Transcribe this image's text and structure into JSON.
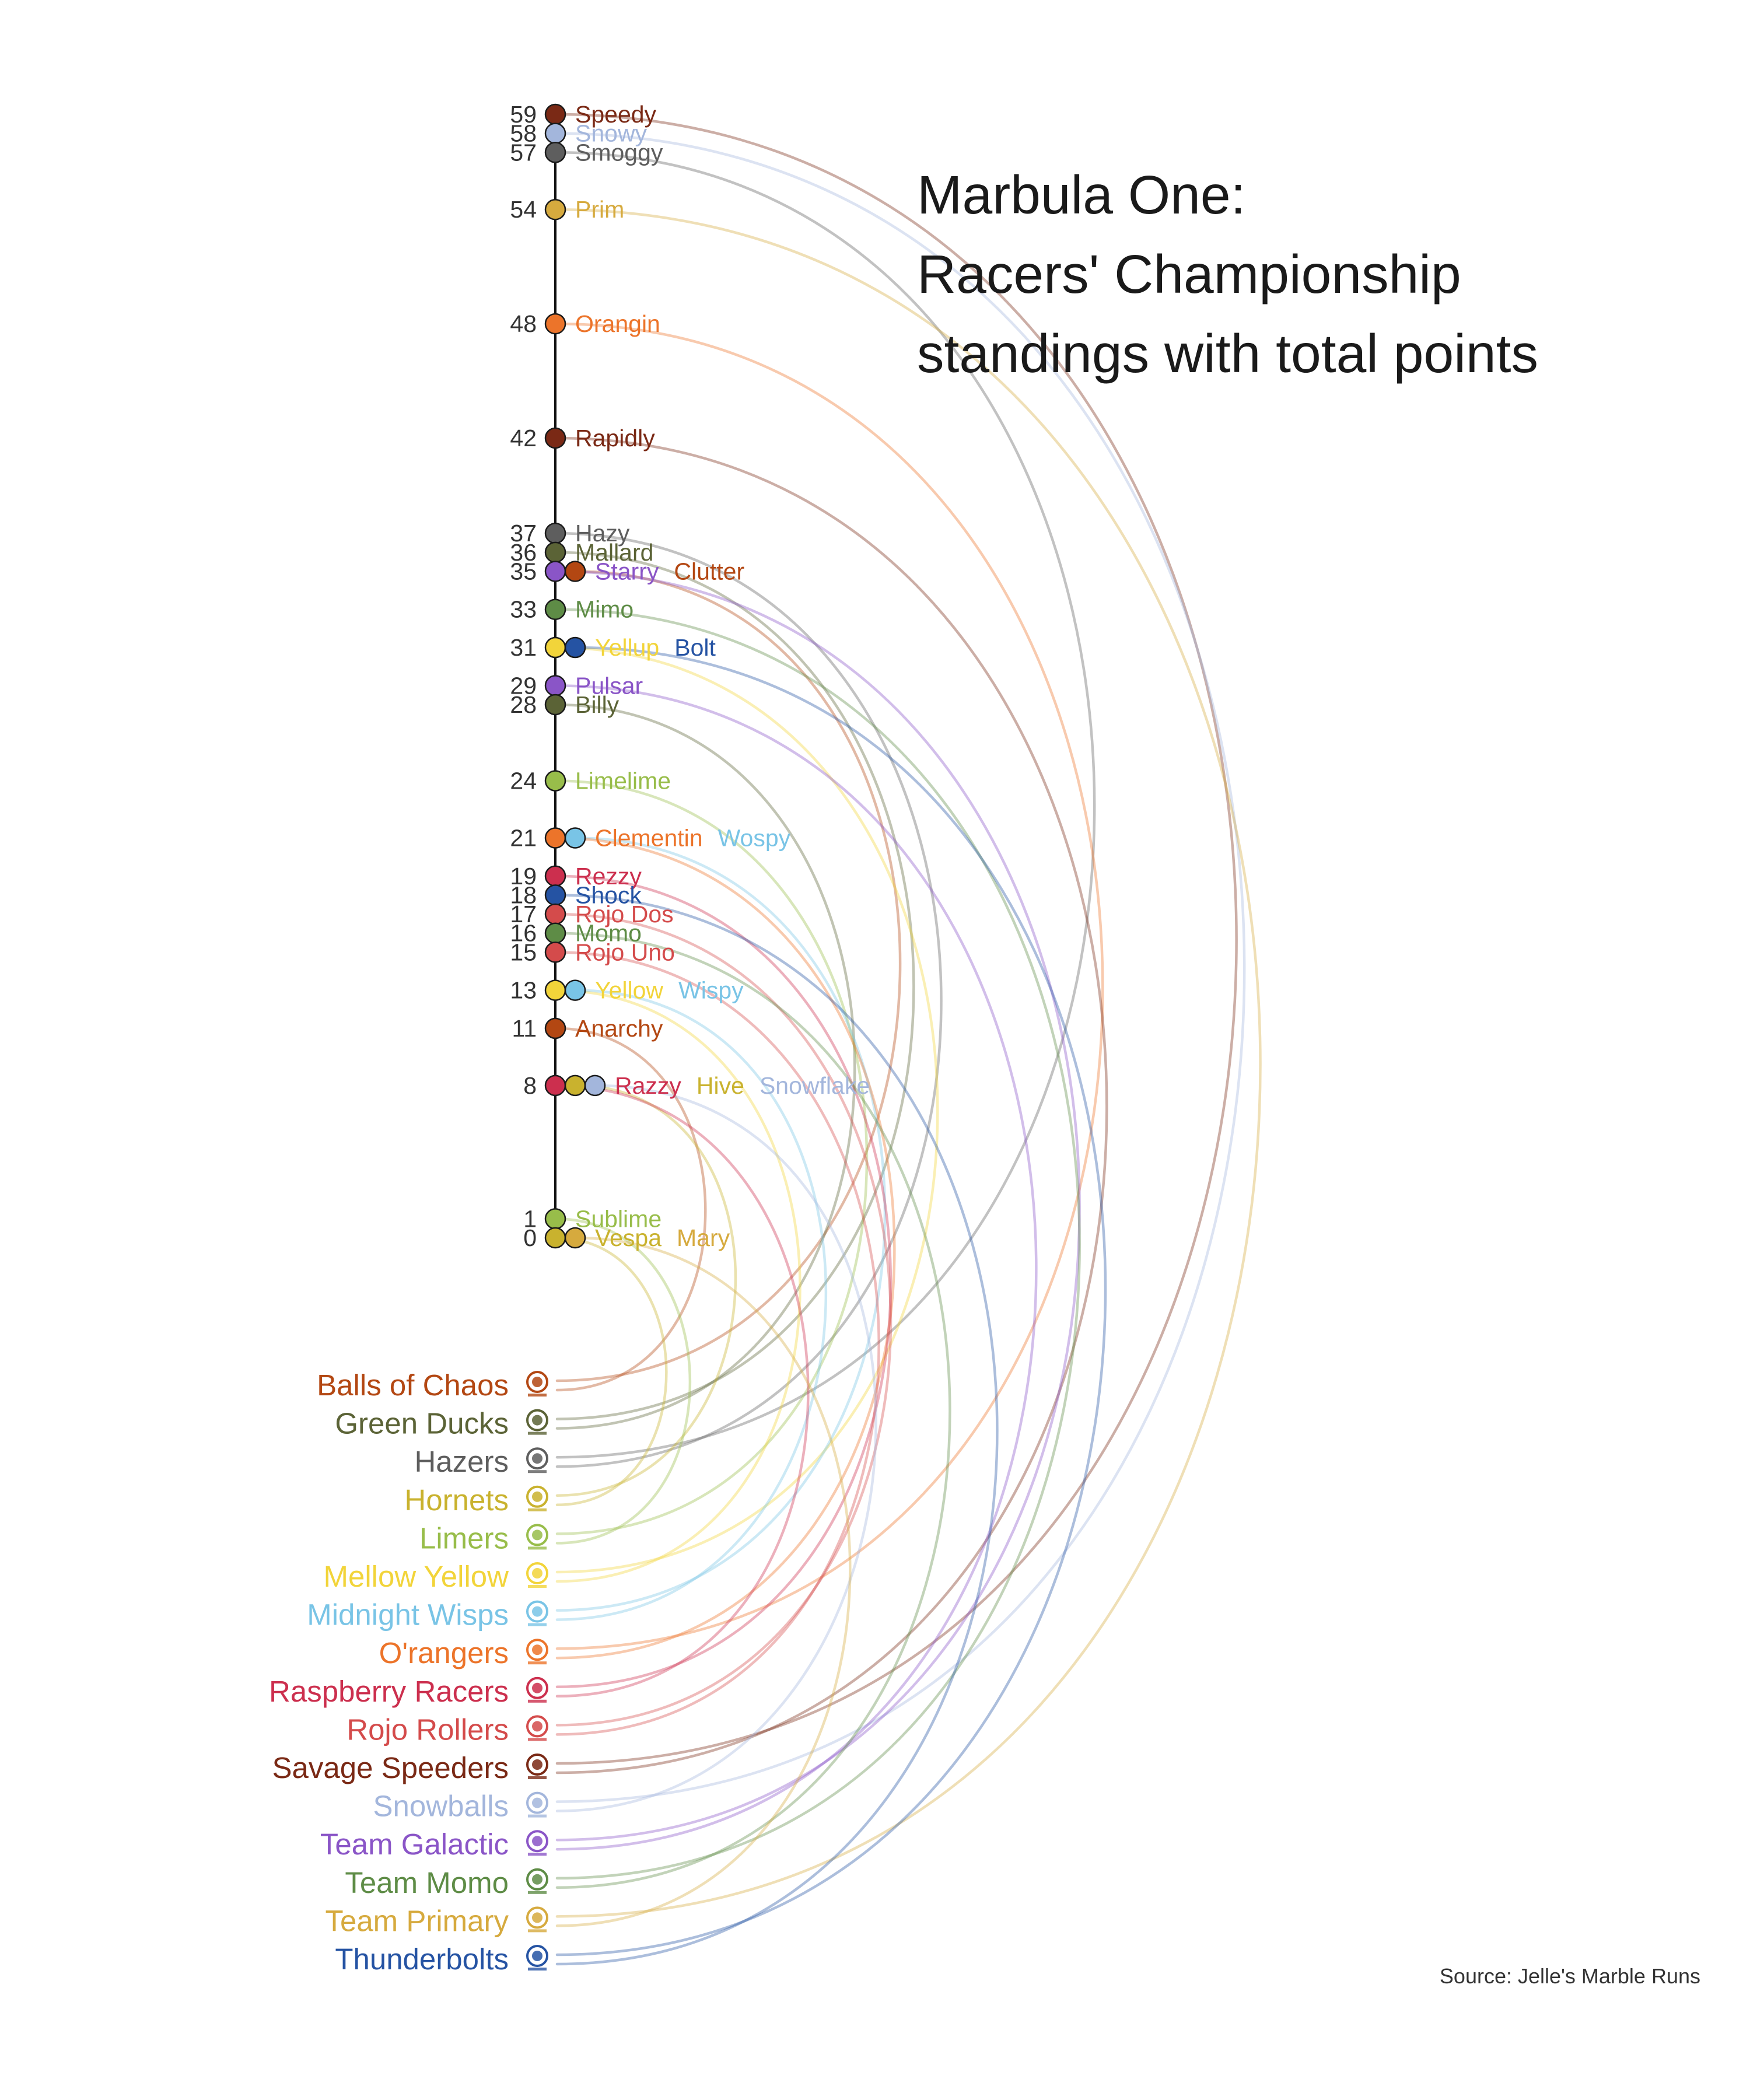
{
  "chart_data": {
    "type": "scatter",
    "title": "Marbula One:\nRacers' Championship\nstandings with total points",
    "source": "Source: Jelle's Marble Runs",
    "ylim": [
      0,
      59
    ],
    "teams": [
      {
        "name": "Balls of Chaos",
        "color": "#b34712",
        "racers": [
          "Clutter",
          "Anarchy"
        ]
      },
      {
        "name": "Green Ducks",
        "color": "#5b6336",
        "racers": [
          "Mallard",
          "Billy"
        ]
      },
      {
        "name": "Hazers",
        "color": "#5e5e5e",
        "racers": [
          "Smoggy",
          "Hazy"
        ]
      },
      {
        "name": "Hornets",
        "color": "#c9b22e",
        "racers": [
          "Hive",
          "Vespa"
        ]
      },
      {
        "name": "Limers",
        "color": "#98bd4a",
        "racers": [
          "Limelime",
          "Sublime"
        ]
      },
      {
        "name": "Mellow Yellow",
        "color": "#f2d43a",
        "racers": [
          "Yellup",
          "Yellow"
        ]
      },
      {
        "name": "Midnight Wisps",
        "color": "#79c4e6",
        "racers": [
          "Wospy",
          "Wispy"
        ]
      },
      {
        "name": "O'rangers",
        "color": "#ec742a",
        "racers": [
          "Orangin",
          "Clementin"
        ]
      },
      {
        "name": "Raspberry Racers",
        "color": "#cc2f4e",
        "racers": [
          "Rezzy",
          "Razzy"
        ]
      },
      {
        "name": "Rojo Rollers",
        "color": "#d44b4b",
        "racers": [
          "Rojo Dos",
          "Rojo Uno"
        ]
      },
      {
        "name": "Savage Speeders",
        "color": "#7a2915",
        "racers": [
          "Speedy",
          "Rapidly"
        ]
      },
      {
        "name": "Snowballs",
        "color": "#a3b6dc",
        "racers": [
          "Snowy",
          "Snowflake"
        ]
      },
      {
        "name": "Team Galactic",
        "color": "#8a55c7",
        "racers": [
          "Starry",
          "Pulsar"
        ]
      },
      {
        "name": "Team Momo",
        "color": "#5e8c46",
        "racers": [
          "Mimo",
          "Momo"
        ]
      },
      {
        "name": "Team Primary",
        "color": "#d6aa3e",
        "racers": [
          "Prim",
          "Mary"
        ]
      },
      {
        "name": "Thunderbolts",
        "color": "#2553a3",
        "racers": [
          "Bolt",
          "Shock"
        ]
      }
    ],
    "standings": [
      {
        "points": 59,
        "racers": [
          {
            "name": "Speedy",
            "team": "Savage Speeders"
          }
        ]
      },
      {
        "points": 58,
        "racers": [
          {
            "name": "Snowy",
            "team": "Snowballs"
          }
        ]
      },
      {
        "points": 57,
        "racers": [
          {
            "name": "Smoggy",
            "team": "Hazers"
          }
        ]
      },
      {
        "points": 54,
        "racers": [
          {
            "name": "Prim",
            "team": "Team Primary"
          }
        ]
      },
      {
        "points": 48,
        "racers": [
          {
            "name": "Orangin",
            "team": "O'rangers"
          }
        ]
      },
      {
        "points": 42,
        "racers": [
          {
            "name": "Rapidly",
            "team": "Savage Speeders"
          }
        ]
      },
      {
        "points": 37,
        "racers": [
          {
            "name": "Hazy",
            "team": "Hazers"
          }
        ]
      },
      {
        "points": 36,
        "racers": [
          {
            "name": "Mallard",
            "team": "Green Ducks"
          }
        ]
      },
      {
        "points": 35,
        "racers": [
          {
            "name": "Starry",
            "team": "Team Galactic"
          },
          {
            "name": "Clutter",
            "team": "Balls of Chaos"
          }
        ]
      },
      {
        "points": 33,
        "racers": [
          {
            "name": "Mimo",
            "team": "Team Momo"
          }
        ]
      },
      {
        "points": 31,
        "racers": [
          {
            "name": "Yellup",
            "team": "Mellow Yellow"
          },
          {
            "name": "Bolt",
            "team": "Thunderbolts"
          }
        ]
      },
      {
        "points": 29,
        "racers": [
          {
            "name": "Pulsar",
            "team": "Team Galactic"
          }
        ]
      },
      {
        "points": 28,
        "racers": [
          {
            "name": "Billy",
            "team": "Green Ducks"
          }
        ]
      },
      {
        "points": 24,
        "racers": [
          {
            "name": "Limelime",
            "team": "Limers"
          }
        ]
      },
      {
        "points": 21,
        "racers": [
          {
            "name": "Clementin",
            "team": "O'rangers"
          },
          {
            "name": "Wospy",
            "team": "Midnight Wisps"
          }
        ]
      },
      {
        "points": 19,
        "racers": [
          {
            "name": "Rezzy",
            "team": "Raspberry Racers"
          }
        ]
      },
      {
        "points": 18,
        "racers": [
          {
            "name": "Shock",
            "team": "Thunderbolts"
          }
        ]
      },
      {
        "points": 17,
        "racers": [
          {
            "name": "Rojo Dos",
            "team": "Rojo Rollers"
          }
        ]
      },
      {
        "points": 16,
        "racers": [
          {
            "name": "Momo",
            "team": "Team Momo"
          }
        ]
      },
      {
        "points": 15,
        "racers": [
          {
            "name": "Rojo Uno",
            "team": "Rojo Rollers"
          }
        ]
      },
      {
        "points": 13,
        "racers": [
          {
            "name": "Yellow",
            "team": "Mellow Yellow"
          },
          {
            "name": "Wispy",
            "team": "Midnight Wisps"
          }
        ]
      },
      {
        "points": 11,
        "racers": [
          {
            "name": "Anarchy",
            "team": "Balls of Chaos"
          }
        ]
      },
      {
        "points": 8,
        "racers": [
          {
            "name": "Razzy",
            "team": "Raspberry Racers"
          },
          {
            "name": "Hive",
            "team": "Hornets"
          },
          {
            "name": "Snowflake",
            "team": "Snowballs"
          }
        ]
      },
      {
        "points": 1,
        "racers": [
          {
            "name": "Sublime",
            "team": "Limers"
          }
        ]
      },
      {
        "points": 0,
        "racers": [
          {
            "name": "Vespa",
            "team": "Hornets"
          },
          {
            "name": "Mary",
            "team": "Team Primary"
          }
        ]
      }
    ]
  }
}
